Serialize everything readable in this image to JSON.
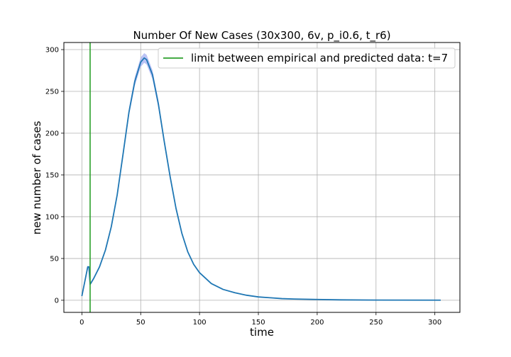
{
  "chart_data": {
    "type": "line",
    "title": "Number Of New Cases (30x300, 6v, p_i0.6, t_r6)",
    "xlabel": "time",
    "ylabel": "new number of cases",
    "xlim": [
      -15.3,
      321.3
    ],
    "ylim": [
      -14.5,
      308.5
    ],
    "xticks": [
      0,
      50,
      100,
      150,
      200,
      250,
      300
    ],
    "yticks": [
      0,
      50,
      100,
      150,
      200,
      250,
      300
    ],
    "grid": true,
    "legend_position": "top-right",
    "vline": {
      "x": 7,
      "label": "limit between empirical and predicted data: t=7",
      "color": "#2ca02c"
    },
    "series": [
      {
        "color": "#1f77b4",
        "band_color": "#aab4f2",
        "points": [
          [
            0,
            5
          ],
          [
            5,
            40
          ],
          [
            6,
            40
          ],
          [
            7,
            19
          ],
          [
            10,
            26
          ],
          [
            15,
            40
          ],
          [
            20,
            60
          ],
          [
            25,
            88
          ],
          [
            30,
            126
          ],
          [
            35,
            175
          ],
          [
            40,
            225
          ],
          [
            45,
            262
          ],
          [
            50,
            285
          ],
          [
            53,
            290
          ],
          [
            55,
            288
          ],
          [
            60,
            270
          ],
          [
            65,
            235
          ],
          [
            70,
            190
          ],
          [
            75,
            148
          ],
          [
            80,
            110
          ],
          [
            85,
            80
          ],
          [
            90,
            58
          ],
          [
            95,
            43
          ],
          [
            100,
            33
          ],
          [
            110,
            20
          ],
          [
            120,
            13
          ],
          [
            130,
            9
          ],
          [
            140,
            6
          ],
          [
            150,
            4
          ],
          [
            160,
            3
          ],
          [
            170,
            2
          ],
          [
            180,
            1.5
          ],
          [
            200,
            1
          ],
          [
            220,
            0.5
          ],
          [
            250,
            0.2
          ],
          [
            305,
            0.1
          ]
        ]
      }
    ]
  }
}
